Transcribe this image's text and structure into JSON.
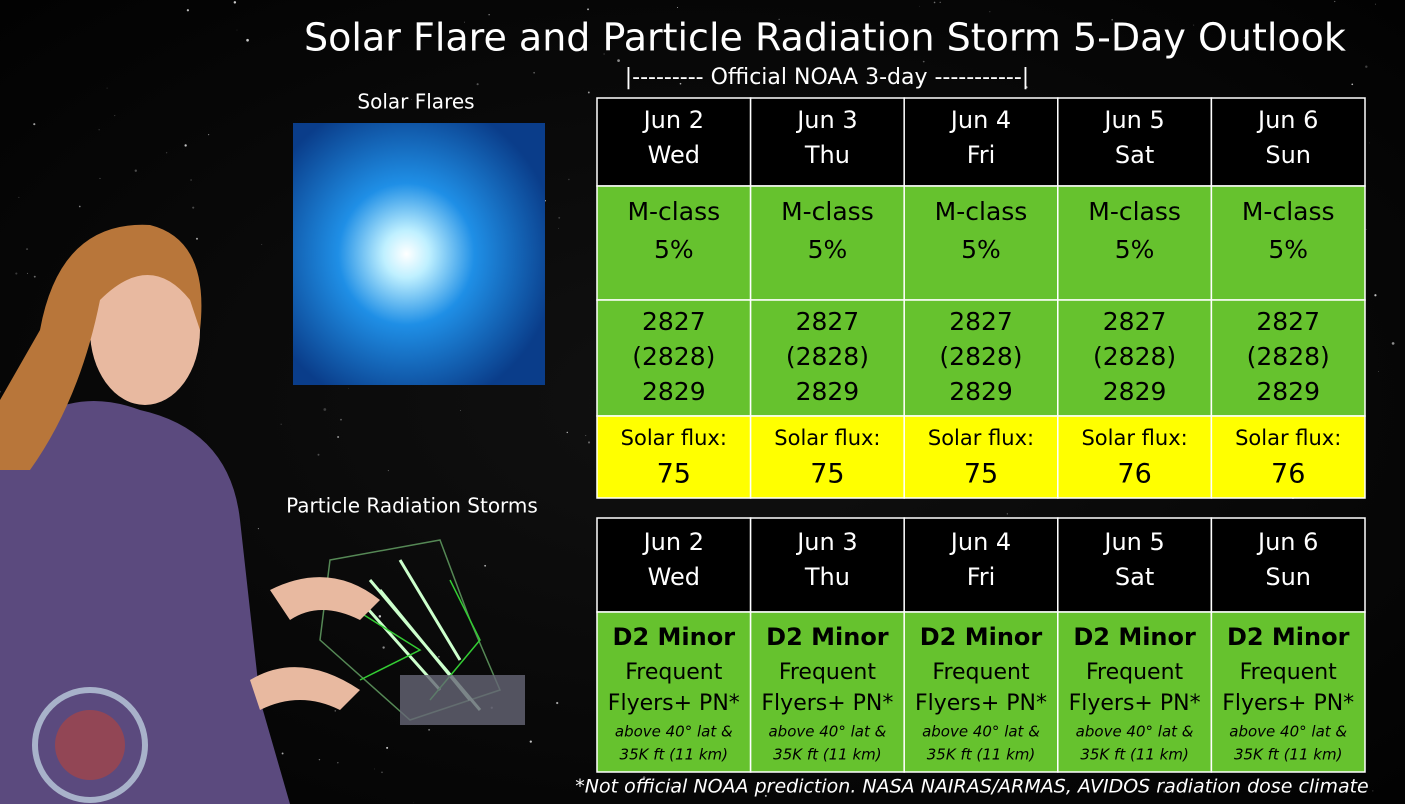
{
  "title": "Solar Flare and Particle Radiation Storm 5-Day Outlook",
  "subtitle": "|--------- Official NOAA 3-day -----------|",
  "image_labels": {
    "flares": "Solar Flares",
    "storms": "Particle Radiation Storms"
  },
  "flare_table": {
    "columns": [
      {
        "date": "Jun 2",
        "day": "Wed",
        "class": "M-class",
        "probability": "5%",
        "regions": [
          "2827",
          "(2828)",
          "2829"
        ],
        "flux_label": "Solar flux:",
        "flux": "75"
      },
      {
        "date": "Jun 3",
        "day": "Thu",
        "class": "M-class",
        "probability": "5%",
        "regions": [
          "2827",
          "(2828)",
          "2829"
        ],
        "flux_label": "Solar flux:",
        "flux": "75"
      },
      {
        "date": "Jun 4",
        "day": "Fri",
        "class": "M-class",
        "probability": "5%",
        "regions": [
          "2827",
          "(2828)",
          "2829"
        ],
        "flux_label": "Solar flux:",
        "flux": "75"
      },
      {
        "date": "Jun 5",
        "day": "Sat",
        "class": "M-class",
        "probability": "5%",
        "regions": [
          "2827",
          "(2828)",
          "2829"
        ],
        "flux_label": "Solar flux:",
        "flux": "76"
      },
      {
        "date": "Jun 6",
        "day": "Sun",
        "class": "M-class",
        "probability": "5%",
        "regions": [
          "2827",
          "(2828)",
          "2829"
        ],
        "flux_label": "Solar flux:",
        "flux": "76"
      }
    ]
  },
  "radiation_table": {
    "columns": [
      {
        "date": "Jun 2",
        "day": "Wed",
        "level": "D2 Minor",
        "line1": "Frequent",
        "line2": "Flyers+ PN*",
        "line3": "above 40° lat &",
        "line4": "35K ft (11 km)"
      },
      {
        "date": "Jun 3",
        "day": "Thu",
        "level": "D2 Minor",
        "line1": "Frequent",
        "line2": "Flyers+ PN*",
        "line3": "above 40° lat &",
        "line4": "35K ft (11 km)"
      },
      {
        "date": "Jun 4",
        "day": "Fri",
        "level": "D2 Minor",
        "line1": "Frequent",
        "line2": "Flyers+ PN*",
        "line3": "above 40° lat &",
        "line4": "35K ft (11 km)"
      },
      {
        "date": "Jun 5",
        "day": "Sat",
        "level": "D2 Minor",
        "line1": "Frequent",
        "line2": "Flyers+ PN*",
        "line3": "above 40° lat &",
        "line4": "35K ft (11 km)"
      },
      {
        "date": "Jun 6",
        "day": "Sun",
        "level": "D2 Minor",
        "line1": "Frequent",
        "line2": "Flyers+ PN*",
        "line3": "above 40° lat &",
        "line4": "35K ft (11 km)"
      }
    ]
  },
  "footnote": "*Not official NOAA prediction. NASA NAIRAS/ARMAS, AVIDOS radiation dose climate"
}
